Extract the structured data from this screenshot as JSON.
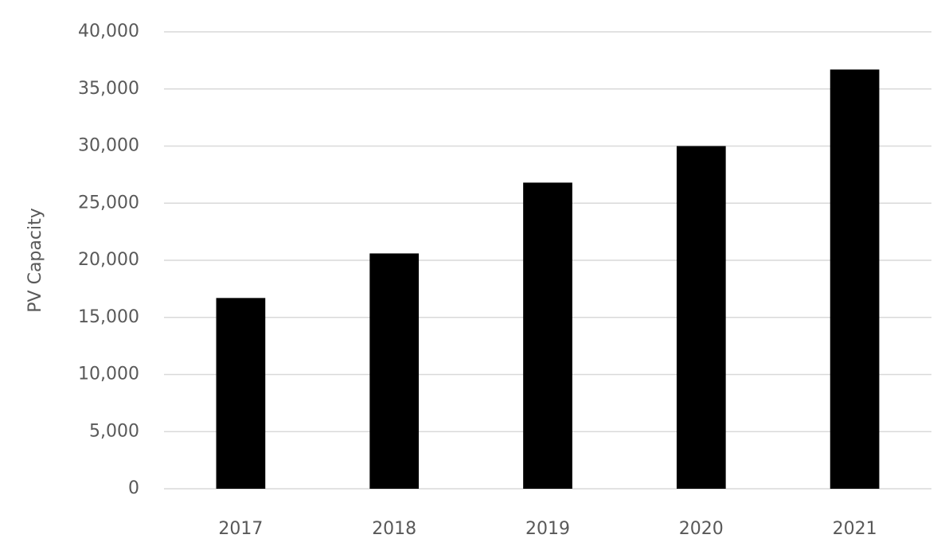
{
  "chart_data": {
    "type": "bar",
    "y_label": "PV Capacity",
    "categories": [
      "2017",
      "2018",
      "2019",
      "2020",
      "2021"
    ],
    "values": [
      16700,
      20600,
      26800,
      30000,
      36700
    ],
    "color": "#000000",
    "ylim": [
      0,
      40000
    ],
    "yticks": [
      0,
      {
        "value": 5000,
        "label": "5,000"
      },
      {
        "value": 10000,
        "label": "10,000"
      },
      {
        "value": 15000,
        "label": "15,000"
      },
      {
        "value": 20000,
        "label": "20,000"
      },
      {
        "value": 25000,
        "label": "25,000"
      },
      {
        "value": 30000,
        "label": "30,000"
      },
      {
        "value": 35000,
        "label": "35,000"
      },
      {
        "value": 40000,
        "label": "40,000"
      }
    ],
    "grid": true
  }
}
